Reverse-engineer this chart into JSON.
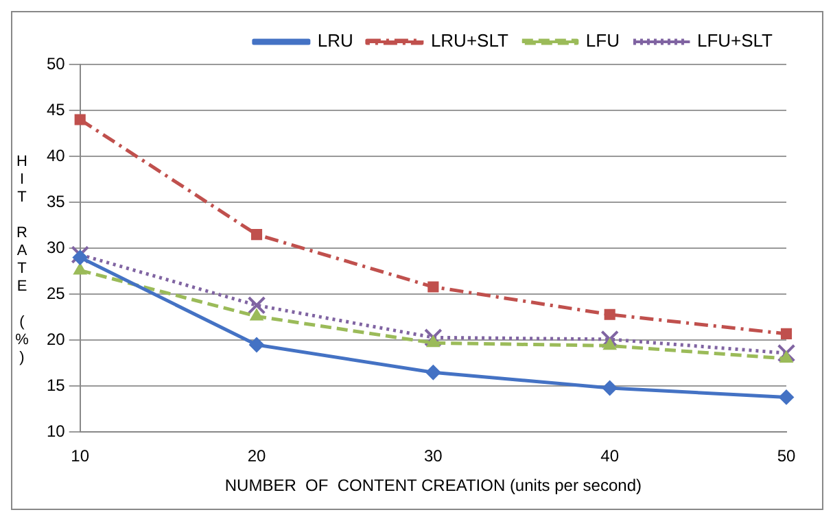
{
  "chart_data": {
    "type": "line",
    "xlabel": "NUMBER  OF  CONTENT CREATION (units per second)",
    "ylabel": "HIT RATE (%)",
    "categories": [
      "10",
      "20",
      "30",
      "40",
      "50"
    ],
    "ylim": [
      10,
      50
    ],
    "yticks": [
      10,
      15,
      20,
      25,
      30,
      35,
      40,
      45,
      50
    ],
    "grid": "y",
    "legend": "top right",
    "series": [
      {
        "name": "LRU",
        "color": "#4472c4",
        "marker": "diamond",
        "line_style": "solid",
        "values": [
          29,
          19.5,
          16.5,
          14.8,
          13.8
        ]
      },
      {
        "name": "LRU+SLT",
        "color": "#c0504d",
        "marker": "square",
        "line_style": "dashdot",
        "values": [
          44,
          31.5,
          25.8,
          22.8,
          20.7
        ]
      },
      {
        "name": "LFU",
        "color": "#9bbb59",
        "marker": "triangle",
        "line_style": "dashed",
        "values": [
          27.6,
          22.6,
          19.7,
          19.4,
          18
        ]
      },
      {
        "name": "LFU+SLT",
        "color": "#8064a2",
        "marker": "cross",
        "line_style": "dotted",
        "values": [
          29.3,
          23.8,
          20.3,
          20.1,
          18.6
        ]
      }
    ]
  }
}
